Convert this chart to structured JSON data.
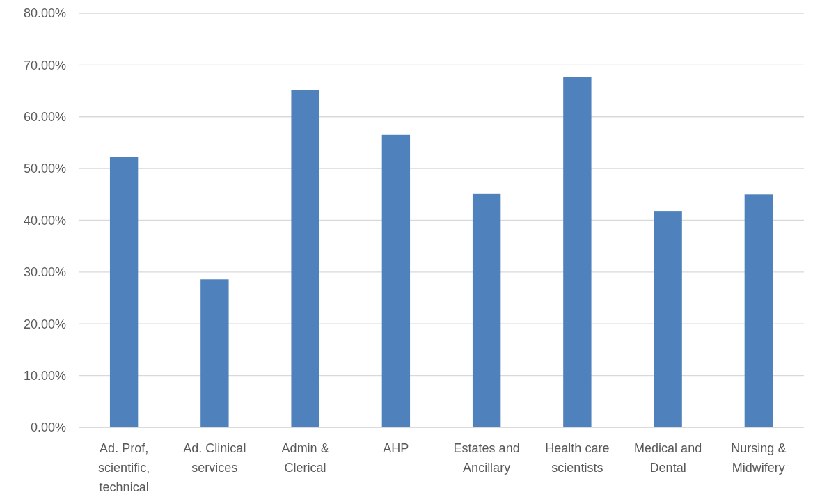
{
  "chart_data": {
    "type": "bar",
    "categories": [
      "Ad. Prof, scientific, technical",
      "Ad. Clinical services",
      "Admin & Clerical",
      "AHP",
      "Estates and Ancillary",
      "Health care scientists",
      "Medical and Dental",
      "Nursing & Midwifery"
    ],
    "values": [
      52.3,
      28.6,
      65.1,
      56.5,
      45.2,
      67.7,
      41.8,
      45.0
    ],
    "color": "#4f81bd",
    "ylim": [
      0,
      80
    ],
    "yticks": [
      {
        "value": 0,
        "label": "0.00%"
      },
      {
        "value": 10,
        "label": "10.00%"
      },
      {
        "value": 20,
        "label": "20.00%"
      },
      {
        "value": 30,
        "label": "30.00%"
      },
      {
        "value": 40,
        "label": "40.00%"
      },
      {
        "value": 50,
        "label": "50.00%"
      },
      {
        "value": 60,
        "label": "60.00%"
      },
      {
        "value": 70,
        "label": "70.00%"
      },
      {
        "value": 80,
        "label": "80.00%"
      }
    ],
    "grid": "y"
  }
}
